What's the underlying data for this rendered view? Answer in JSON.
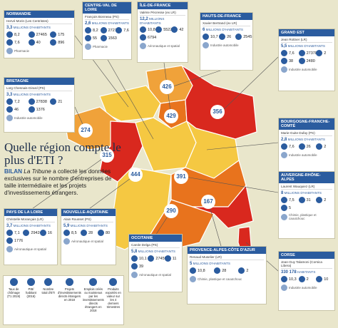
{
  "title": "Quelle région compte le plus d'ETI ?",
  "intro": {
    "lead": "BILAN",
    "source": "La Tribune",
    "text": "a collecté les données exclusives sur le nombre d'entreprises de taille intermédiaire et les projets d'investissements étrangers."
  },
  "regions": [
    {
      "name": "Normandie",
      "president": "Hervé Morin (Les Centristes)",
      "population": "3,3",
      "population_unit": "MILLIONS D'HABITANTS",
      "stats": [
        "8,2",
        "27465",
        "175",
        "7,6",
        "40",
        "896"
      ],
      "note": "Pharmacie"
    },
    {
      "name": "Centre-Val de Loire",
      "president": "François Bonneau (PS)",
      "population": "2,6",
      "population_unit": "MILLIONS D'HABITANTS",
      "stats": [
        "8,2",
        "27274",
        "7,6",
        "55",
        "1563"
      ],
      "note": "Pharmacie"
    },
    {
      "name": "Île-de-France",
      "president": "Valérie Pécresse (ex LR)",
      "population": "12,2",
      "population_unit": "MILLIONS D'HABITANTS",
      "stats": [
        "10,8",
        "55227",
        "42",
        "6794"
      ],
      "note": "Aéronautique et spatial"
    },
    {
      "name": "Hauts-de-France",
      "president": "Xavier Bertrand (ex LR)",
      "population": "6",
      "population_unit": "MILLIONS D'HABITANTS",
      "stats": [
        "10,7",
        "26",
        "2545"
      ],
      "note": "Industrie automobile"
    },
    {
      "name": "Grand Est",
      "president": "Jean Rottner (LR)",
      "population": "5,5",
      "population_unit": "MILLIONS D'HABITANTS",
      "stats": [
        "7,6",
        "27378",
        "2",
        "38",
        "2480"
      ],
      "note": "Industrie automobile"
    },
    {
      "name": "Bretagne",
      "president": "Loïg Chesnais-Girard (PS)",
      "population": "3,3",
      "population_unit": "MILLIONS D'HABITANTS",
      "stats": [
        "7,2",
        "27838",
        "21",
        "46",
        "1376"
      ],
      "note": "Industrie automobile"
    },
    {
      "name": "Bourgogne-Franche-Comté",
      "president": "Marie-Guite Dufay (PS)",
      "population": "2,8",
      "population_unit": "MILLIONS D'HABITANTS",
      "stats": [
        "7,6",
        "26",
        "2"
      ],
      "note": "Industrie automobile"
    },
    {
      "name": "Auvergne-Rhône-Alpes",
      "president": "Laurent Wauquiez (LR)",
      "population": "8",
      "population_unit": "MILLIONS D'HABITANTS",
      "stats": [
        "7,5",
        "31",
        "2",
        "5"
      ],
      "note": "Chimie, plastique et caoutchouc"
    },
    {
      "name": "Pays de la Loire",
      "president": "Christelle Morançais (LR)",
      "population": "3,7",
      "population_unit": "MILLIONS D'HABITANTS",
      "stats": [
        "7,1",
        "29424",
        "16",
        "1776"
      ],
      "note": "Aéronautique et spatial"
    },
    {
      "name": "Nouvelle-Aquitaine",
      "president": "Alain Rousset (PS)",
      "population": "5,9",
      "population_unit": "MILLIONS D'HABITANTS",
      "stats": [
        "8,5",
        "28",
        "80"
      ],
      "note": "Aéronautique et spatial"
    },
    {
      "name": "Occitanie",
      "president": "Carole Delga (PS)",
      "population": "5,8",
      "population_unit": "MILLIONS D'HABITANTS",
      "stats": [
        "10,1",
        "27459",
        "11",
        "39"
      ],
      "note": "Aéronautique et spatial"
    },
    {
      "name": "Provence-Alpes-Côte d'Azur",
      "president": "Renaud Muselier (LR)",
      "population": "5",
      "population_unit": "MILLIONS D'HABITANTS",
      "stats": [
        "10,8",
        "28",
        "2"
      ],
      "note": "Chimie, plastique et caoutchouc"
    },
    {
      "name": "Corse",
      "president": "Jean-Guy Talamoni (Corsica Libera)",
      "population": "330 178",
      "population_unit": "HABITANTS",
      "stats": [
        "10,3",
        "2",
        "10"
      ],
      "note": "Industrie automobile"
    }
  ],
  "map_labels": [
    "426",
    "429",
    "356",
    "274",
    "315",
    "444",
    "391",
    "290",
    "167"
  ],
  "legend": [
    "Taux de chômage (T1 2019)",
    "PIB/ habitant (2016)",
    "Nombre total d'ETI",
    "Projets d'investissements directs étrangers en 2018",
    "Emplois créés ou maintenus par les investissements directs étrangers en 2018",
    "Produits exportés en valeur sur les 4 derniers trimestres"
  ]
}
